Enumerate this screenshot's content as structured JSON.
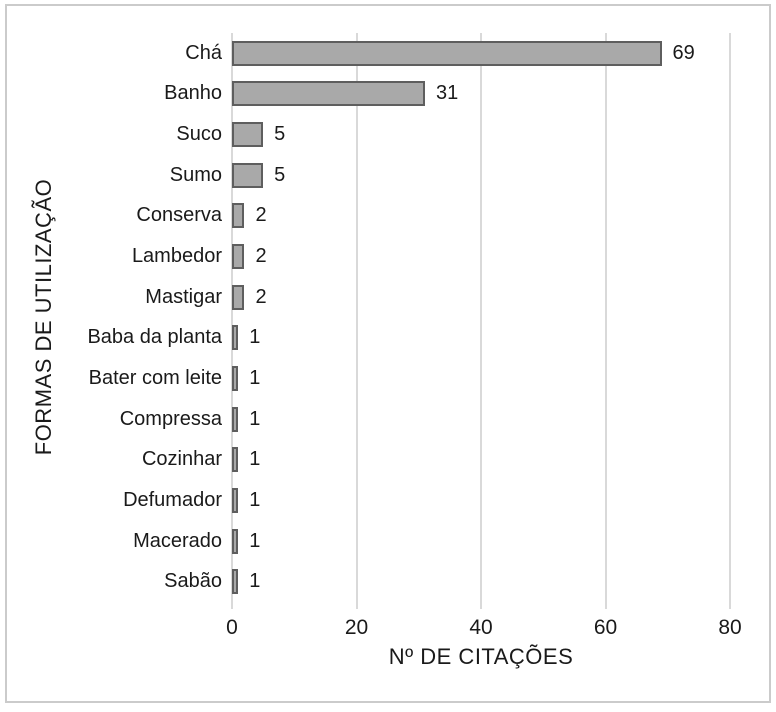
{
  "chart_data": {
    "type": "bar",
    "orientation": "horizontal",
    "title": "",
    "xlabel": "Nº DE CITAÇÕES",
    "ylabel": "FORMAS DE UTILIZAÇÃO",
    "categories": [
      "Chá",
      "Banho",
      "Suco",
      "Sumo",
      "Conserva",
      "Lambedor",
      "Mastigar",
      "Baba da planta",
      "Bater com leite",
      "Compressa",
      "Cozinhar",
      "Defumador",
      "Macerado",
      "Sabão"
    ],
    "values": [
      69,
      31,
      5,
      5,
      2,
      2,
      2,
      1,
      1,
      1,
      1,
      1,
      1,
      1
    ],
    "xlim": [
      0,
      80
    ],
    "xticks": [
      0,
      20,
      40,
      60,
      80
    ],
    "grid": true,
    "data_labels": true,
    "legend": "none",
    "colors": {
      "bar_fill": "#a9a9a9",
      "bar_border": "#5e5e5e",
      "gridline": "#d9d9d9",
      "frame": "#cbcbcb",
      "text": "#1a1a1a"
    }
  }
}
